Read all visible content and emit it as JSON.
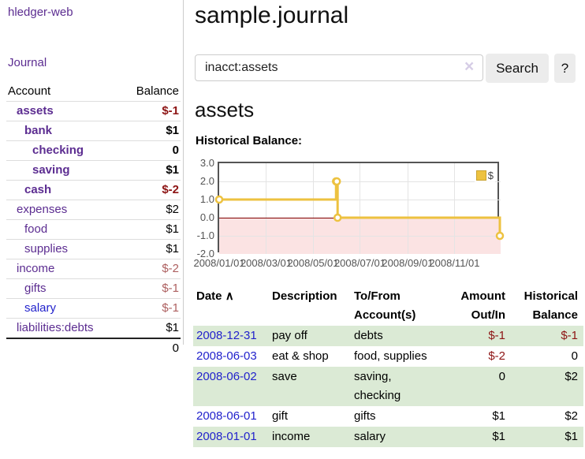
{
  "app": {
    "title": "hledger-web"
  },
  "sidebar": {
    "journal_label": "Journal",
    "accounts_header": {
      "account": "Account",
      "balance": "Balance"
    },
    "accounts": [
      {
        "name": "assets",
        "balance": "$-1"
      },
      {
        "name": "bank",
        "balance": "$1"
      },
      {
        "name": "checking",
        "balance": "0"
      },
      {
        "name": "saving",
        "balance": "$1"
      },
      {
        "name": "cash",
        "balance": "$-2"
      },
      {
        "name": "expenses",
        "balance": "$2"
      },
      {
        "name": "food",
        "balance": "$1"
      },
      {
        "name": "supplies",
        "balance": "$1"
      },
      {
        "name": "income",
        "balance": "$-2"
      },
      {
        "name": "gifts",
        "balance": "$-1"
      },
      {
        "name": "salary",
        "balance": "$-1"
      },
      {
        "name": "liabilities:debts",
        "balance": "$1"
      }
    ],
    "total": "0"
  },
  "search": {
    "value": "inacct:assets",
    "clear_icon": "×",
    "search_label": "Search",
    "help_label": "?"
  },
  "main": {
    "title": "sample.journal",
    "account_heading": "assets",
    "chart_label": "Historical Balance:"
  },
  "chart_data": {
    "type": "line",
    "title": "Historical Balance of assets",
    "step": true,
    "series": [
      {
        "name": "$",
        "points": [
          [
            "2008-01-01",
            1
          ],
          [
            "2008-06-01",
            2
          ],
          [
            "2008-06-02",
            2
          ],
          [
            "2008-06-03",
            0
          ],
          [
            "2008-12-31",
            -1
          ]
        ]
      }
    ],
    "ylim": [
      -2,
      3
    ],
    "yticks": [
      "3.0",
      "2.0",
      "1.0",
      "0.0",
      "-1.0",
      "-2.0"
    ],
    "xticks": [
      {
        "label": "2008/01/01",
        "day": 0
      },
      {
        "label": "2008/03/01",
        "day": 61
      },
      {
        "label": "2008/05/01",
        "day": 122
      },
      {
        "label": "2008/07/01",
        "day": 183
      },
      {
        "label": "2008/09/01",
        "day": 245
      },
      {
        "label": "2008/11/01",
        "day": 306
      }
    ],
    "x_start": "2008-01-01",
    "x_range_days": 365,
    "legend": {
      "label": "$",
      "position": "top-right"
    },
    "colors": {
      "line": "#edc240",
      "marker_fill": "#ffffff",
      "negative_fill": "#fbe3e3",
      "zero_line": "#800000"
    },
    "grid": true
  },
  "register": {
    "headers": {
      "date": "Date",
      "sort_icon": "∧",
      "description": "Description",
      "account_line1": "To/From",
      "account_line2": "Account(s)",
      "amount_line1": "Amount",
      "amount_line2": "Out/In",
      "balance_line1": "Historical",
      "balance_line2": "Balance"
    },
    "rows": [
      {
        "date": "2008-12-31",
        "description": "pay off",
        "accounts": "debts",
        "amount": "$-1",
        "balance": "$-1"
      },
      {
        "date": "2008-06-03",
        "description": "eat & shop",
        "accounts": "food, supplies",
        "amount": "$-2",
        "balance": "0"
      },
      {
        "date": "2008-06-02",
        "description": "save",
        "accounts": "saving, checking",
        "amount": "0",
        "balance": "$2"
      },
      {
        "date": "2008-06-01",
        "description": "gift",
        "accounts": "gifts",
        "amount": "$1",
        "balance": "$2"
      },
      {
        "date": "2008-01-01",
        "description": "income",
        "accounts": "salary",
        "amount": "$1",
        "balance": "$1"
      }
    ]
  }
}
